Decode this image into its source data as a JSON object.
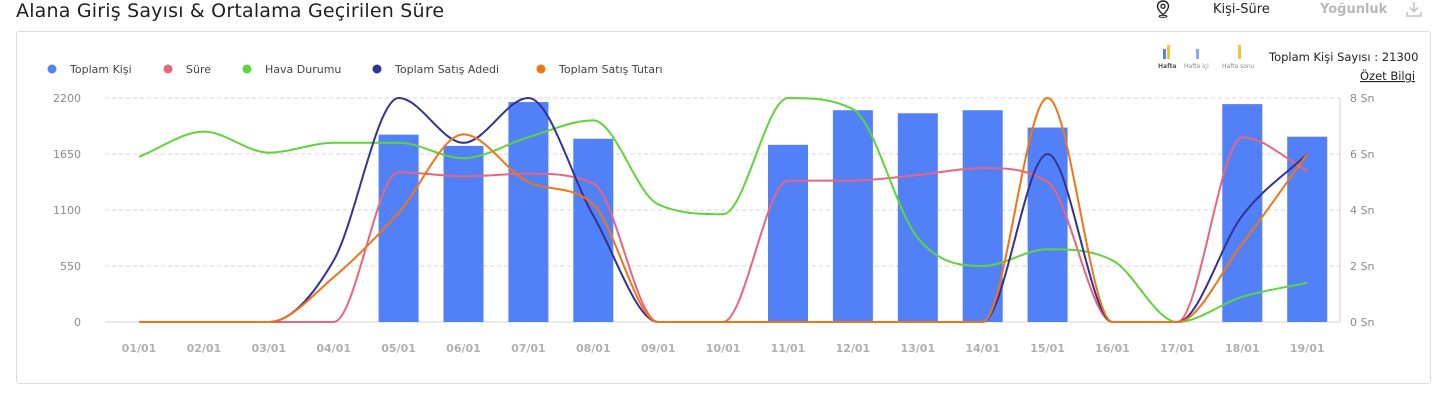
{
  "header": {
    "title": "Alana Giriş Sayısı & Ortalama Geçirilen Süre",
    "tab_active": "Kişi-Süre",
    "tab_inactive": "Yoğunluk",
    "icons": [
      "location-pin-icon",
      "download-icon"
    ]
  },
  "info": {
    "total_label": "Toplam Kişi Sayısı : 21300",
    "summary_link": "Özet Bilgi",
    "mini_legend": [
      "Hafta",
      "Hafta içi",
      "Hafta sonu"
    ]
  },
  "chart_data": {
    "type": "bar",
    "categories": [
      "01/01",
      "02/01",
      "03/01",
      "04/01",
      "05/01",
      "06/01",
      "07/01",
      "08/01",
      "09/01",
      "10/01",
      "11/01",
      "12/01",
      "13/01",
      "14/01",
      "15/01",
      "16/01",
      "17/01",
      "18/01",
      "19/01"
    ],
    "y_left": {
      "ticks": [
        "0",
        "550",
        "1100",
        "1650",
        "2200"
      ],
      "ylim": [
        0,
        2200
      ]
    },
    "y_right": {
      "ticks": [
        "0 Sn",
        "2 Sn",
        "4 Sn",
        "6 Sn",
        "8 Sn"
      ],
      "ylim": [
        0,
        8
      ]
    },
    "grid": true,
    "legend_position": "top-left",
    "series": [
      {
        "name": "Toplam Kişi",
        "kind": "bar",
        "axis": "left",
        "color": "#5280f7",
        "values": [
          0,
          0,
          0,
          0,
          1840,
          1730,
          2160,
          1800,
          0,
          0,
          1740,
          2080,
          2050,
          2080,
          1910,
          0,
          0,
          2140,
          1820
        ]
      },
      {
        "name": "Süre",
        "kind": "line",
        "axis": "right",
        "color": "#e8657e",
        "values": [
          0,
          0,
          0,
          0,
          5.35,
          5.2,
          5.3,
          4.95,
          0,
          0,
          5.05,
          5.05,
          5.25,
          5.5,
          5.0,
          0,
          0,
          6.6,
          5.4
        ]
      },
      {
        "name": "Hava Durumu",
        "kind": "line",
        "axis": "right",
        "color": "#5fd43a",
        "values": [
          5.9,
          6.8,
          6.05,
          6.4,
          6.4,
          5.85,
          6.6,
          7.2,
          4.2,
          3.85,
          8.0,
          7.6,
          3.0,
          2.0,
          2.6,
          2.2,
          0,
          0.9,
          1.4
        ]
      },
      {
        "name": "Toplam Satış Adedi",
        "kind": "line",
        "axis": "right",
        "color": "#343292",
        "values": [
          0,
          0,
          0,
          2.2,
          8.0,
          6.4,
          8.0,
          3.8,
          0,
          0,
          0,
          0,
          0,
          0,
          6.0,
          0,
          0,
          3.8,
          6.0
        ]
      },
      {
        "name": "Toplam Satış Tutarı",
        "kind": "line",
        "axis": "right",
        "color": "#f07516",
        "values": [
          0,
          0,
          0,
          1.6,
          3.9,
          6.7,
          5.0,
          4.2,
          0,
          0,
          0,
          0,
          0,
          0,
          8.0,
          0,
          0,
          2.8,
          6.0
        ]
      }
    ]
  }
}
